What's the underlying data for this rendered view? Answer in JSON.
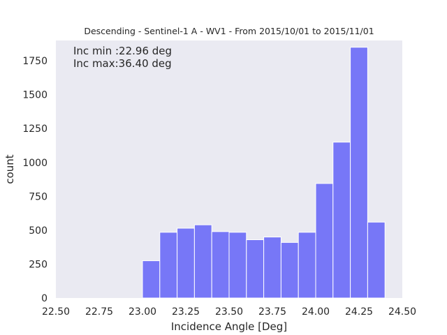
{
  "chart_data": {
    "type": "bar",
    "title": "Descending - Sentinel-1 A - WV1 - From 2015/10/01 to 2015/11/01",
    "xlabel": "Incidence Angle [Deg]",
    "ylabel": "count",
    "xlim": [
      22.5,
      24.5
    ],
    "ylim": [
      0,
      1900
    ],
    "xticks": [
      "22.50",
      "22.75",
      "23.00",
      "23.25",
      "23.50",
      "23.75",
      "24.00",
      "24.25",
      "24.50"
    ],
    "yticks": [
      "0",
      "250",
      "500",
      "750",
      "1000",
      "1250",
      "1500",
      "1750"
    ],
    "grid": false,
    "bin_width": 0.1,
    "bins": [
      {
        "x0": 23.0,
        "x1": 23.1,
        "value": 275
      },
      {
        "x0": 23.1,
        "x1": 23.2,
        "value": 485
      },
      {
        "x0": 23.2,
        "x1": 23.3,
        "value": 515
      },
      {
        "x0": 23.3,
        "x1": 23.4,
        "value": 540
      },
      {
        "x0": 23.4,
        "x1": 23.5,
        "value": 490
      },
      {
        "x0": 23.5,
        "x1": 23.6,
        "value": 485
      },
      {
        "x0": 23.6,
        "x1": 23.7,
        "value": 430
      },
      {
        "x0": 23.7,
        "x1": 23.8,
        "value": 450
      },
      {
        "x0": 23.8,
        "x1": 23.9,
        "value": 410
      },
      {
        "x0": 23.9,
        "x1": 24.0,
        "value": 485
      },
      {
        "x0": 24.0,
        "x1": 24.1,
        "value": 845
      },
      {
        "x0": 24.1,
        "x1": 24.2,
        "value": 1150
      },
      {
        "x0": 24.2,
        "x1": 24.3,
        "value": 1850
      },
      {
        "x0": 24.3,
        "x1": 24.4,
        "value": 560
      }
    ],
    "annotations": [
      "Inc min :22.96 deg",
      "Inc max:36.40 deg"
    ],
    "colors": {
      "bar": "#7777f7",
      "plot_bg": "#eaeaf2",
      "bar_edge": "#ffffff"
    }
  }
}
